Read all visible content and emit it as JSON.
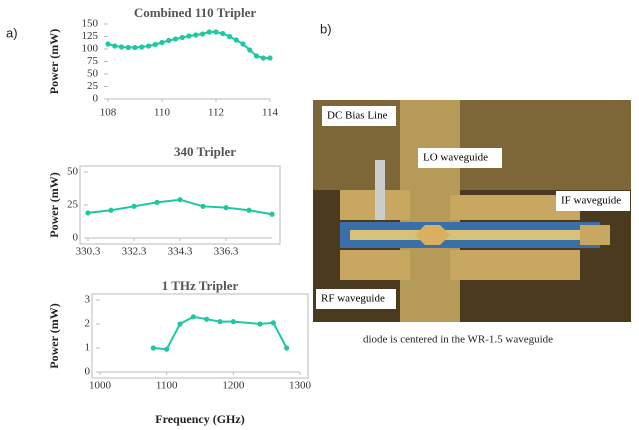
{
  "panel_labels": [
    "a)",
    "b)"
  ],
  "chart_data": [
    {
      "type": "line",
      "title": "Combined 110 Tripler",
      "y_label": "Power (mW)",
      "x": [
        108,
        108.25,
        108.5,
        108.75,
        109,
        109.25,
        109.5,
        109.75,
        110,
        110.25,
        110.5,
        110.75,
        111,
        111.25,
        111.5,
        111.75,
        112,
        112.25,
        112.5,
        112.75,
        113,
        113.25,
        113.5,
        113.75,
        114
      ],
      "series": [
        {
          "color": "#1fc8a0",
          "values": [
            110,
            106,
            104,
            103,
            103,
            104,
            106,
            109,
            113,
            117,
            120,
            123,
            126,
            128,
            130,
            134,
            134,
            131,
            125,
            118,
            110,
            98,
            86,
            82,
            82
          ]
        }
      ],
      "xlim": [
        108,
        114
      ],
      "xticks": [
        108,
        110,
        112,
        114
      ],
      "ylim": [
        0,
        150
      ],
      "yticks": [
        0,
        25,
        50,
        75,
        100,
        125,
        150
      ]
    },
    {
      "type": "line",
      "title": "340 Tripler",
      "y_label": "Power (mW)",
      "x": [
        330.3,
        331.3,
        332.3,
        333.3,
        334.3,
        335.3,
        336.3,
        337.3,
        338.3
      ],
      "series": [
        {
          "color": "#1fc8a0",
          "values": [
            19,
            21,
            24,
            27,
            29,
            24,
            23,
            21,
            18
          ]
        }
      ],
      "xlim": [
        330.3,
        338.3
      ],
      "xticks": [
        330.3,
        332.3,
        334.3,
        336.3
      ],
      "ylim": [
        0,
        50
      ],
      "yticks": [
        0,
        25,
        50
      ]
    },
    {
      "type": "line",
      "title": "1 THz Tripler",
      "y_label": "Power (mW)",
      "x_label": "Frequency (GHz)",
      "x": [
        1080,
        1100,
        1120,
        1140,
        1160,
        1180,
        1200,
        1240,
        1260,
        1280
      ],
      "series": [
        {
          "color": "#1fc8a0",
          "values": [
            1,
            0.95,
            2,
            2.3,
            2.2,
            2.1,
            2.1,
            2.0,
            2.05,
            1.0
          ]
        }
      ],
      "xlim": [
        1000,
        1300
      ],
      "xticks": [
        1000,
        1100,
        1200,
        1300
      ],
      "ylim": [
        0,
        3
      ],
      "yticks": [
        0,
        1,
        2,
        3
      ]
    }
  ],
  "photo": {
    "labels": [
      "DC Bias Line",
      "LO waveguide",
      "IF waveguide",
      "RF waveguide"
    ],
    "caption": "diode is centered in the WR-1.5 waveguide"
  }
}
